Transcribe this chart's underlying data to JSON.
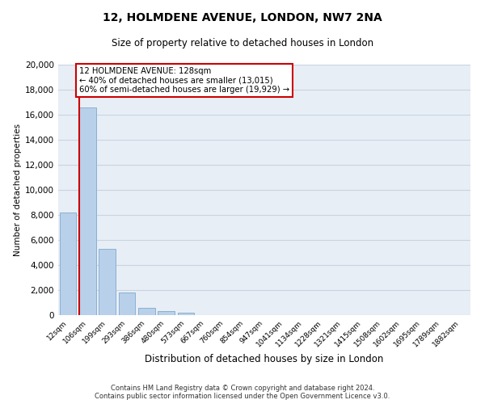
{
  "title": "12, HOLMDENE AVENUE, LONDON, NW7 2NA",
  "subtitle": "Size of property relative to detached houses in London",
  "xlabel": "Distribution of detached houses by size in London",
  "ylabel": "Number of detached properties",
  "bar_labels": [
    "12sqm",
    "106sqm",
    "199sqm",
    "293sqm",
    "386sqm",
    "480sqm",
    "573sqm",
    "667sqm",
    "760sqm",
    "854sqm",
    "947sqm",
    "1041sqm",
    "1134sqm",
    "1228sqm",
    "1321sqm",
    "1415sqm",
    "1508sqm",
    "1602sqm",
    "1695sqm",
    "1789sqm",
    "1882sqm"
  ],
  "bar_values": [
    8200,
    16600,
    5300,
    1800,
    600,
    300,
    170,
    0,
    0,
    0,
    0,
    0,
    0,
    0,
    0,
    0,
    0,
    0,
    0,
    0,
    0
  ],
  "bar_color": "#b8d0ea",
  "bar_edge_color": "#8ab0d0",
  "annotation_text_line1": "12 HOLMDENE AVENUE: 128sqm",
  "annotation_text_line2": "← 40% of detached houses are smaller (13,015)",
  "annotation_text_line3": "60% of semi-detached houses are larger (19,929) →",
  "annotation_box_color": "#ffffff",
  "annotation_box_edge_color": "#cc0000",
  "red_line_color": "#cc0000",
  "ylim": [
    0,
    20000
  ],
  "yticks": [
    0,
    2000,
    4000,
    6000,
    8000,
    10000,
    12000,
    14000,
    16000,
    18000,
    20000
  ],
  "footer_line1": "Contains HM Land Registry data © Crown copyright and database right 2024.",
  "footer_line2": "Contains public sector information licensed under the Open Government Licence v3.0.",
  "grid_color": "#c8d4e0",
  "bg_color": "#e8eef6"
}
